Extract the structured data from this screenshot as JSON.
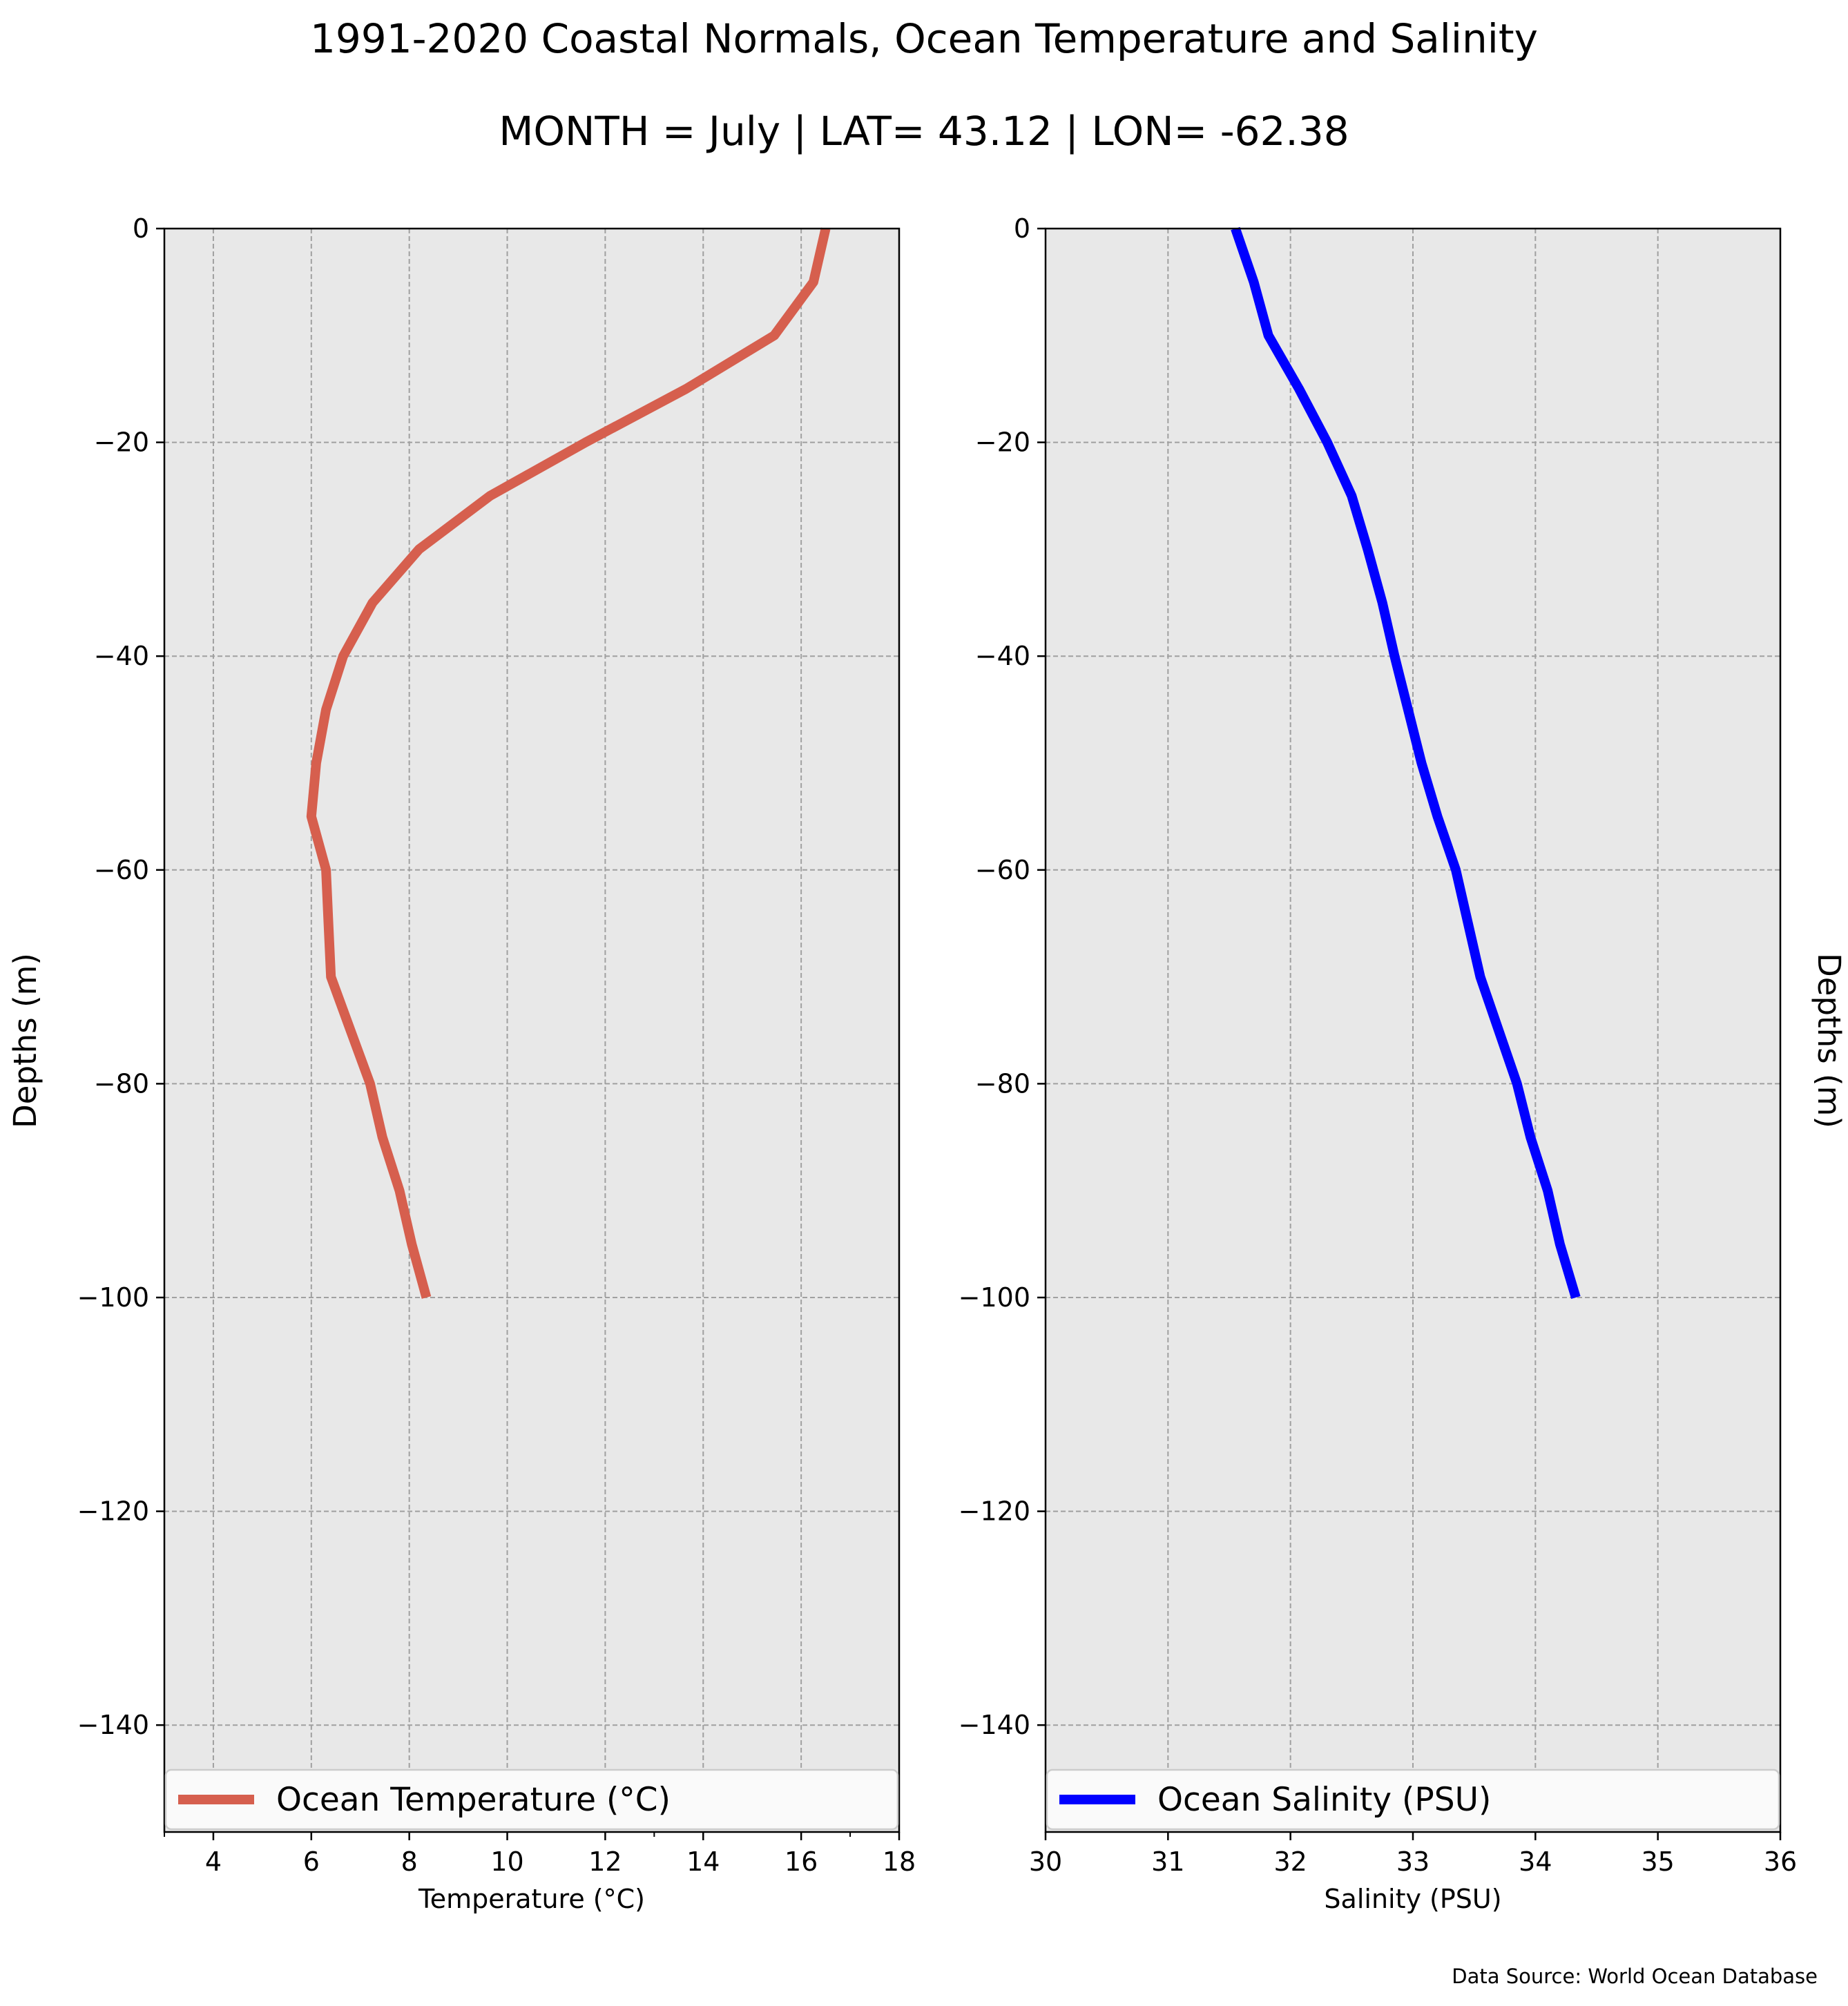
{
  "header": {
    "title": "1991-2020 Coastal Normals, Ocean Temperature and Salinity",
    "subtitle": "MONTH = July | LAT= 43.12 | LON= -62.38"
  },
  "source_note": "Data Source: World Ocean Database",
  "chart_data": [
    {
      "type": "line",
      "xlabel": "Temperature (°C)",
      "ylabel": "Depths (m)",
      "xlim": [
        3,
        18
      ],
      "ylim": [
        -150,
        0
      ],
      "xticks": [
        4,
        6,
        8,
        10,
        12,
        14,
        16,
        18
      ],
      "xtick_labels": [
        "4",
        "6",
        "8",
        "10",
        "12",
        "14",
        "16",
        "18"
      ],
      "yticks": [
        0,
        -20,
        -40,
        -60,
        -80,
        -100,
        -120,
        -140
      ],
      "ytick_labels": [
        "0",
        "−20",
        "−40",
        "−60",
        "−80",
        "−100",
        "−120",
        "−140"
      ],
      "grid": true,
      "legend_position": "bottom",
      "series": [
        {
          "name": "Ocean Temperature (°C)",
          "color": "#d65f4e",
          "x": [
            16.5,
            16.25,
            15.45,
            13.65,
            11.6,
            9.65,
            8.2,
            7.25,
            6.65,
            6.3,
            6.1,
            6.0,
            6.3,
            6.35,
            6.4,
            6.8,
            7.2,
            7.45,
            7.8,
            8.05,
            8.35
          ],
          "y": [
            0,
            -5,
            -10,
            -15,
            -20,
            -25,
            -30,
            -35,
            -40,
            -45,
            -50,
            -55,
            -60,
            -65,
            -70,
            -75,
            -80,
            -85,
            -90,
            -95,
            -100
          ]
        }
      ]
    },
    {
      "type": "line",
      "xlabel": "Salinity (PSU)",
      "ylabel": "Depths (m)",
      "xlim": [
        30,
        36
      ],
      "ylim": [
        -150,
        0
      ],
      "xticks": [
        30,
        31,
        32,
        33,
        34,
        35,
        36
      ],
      "xtick_labels": [
        "30",
        "31",
        "32",
        "33",
        "34",
        "35",
        "36"
      ],
      "yticks": [
        0,
        -20,
        -40,
        -60,
        -80,
        -100,
        -120,
        -140
      ],
      "ytick_labels": [
        "0",
        "−20",
        "−40",
        "−60",
        "−80",
        "−100",
        "−120",
        "−140"
      ],
      "grid": true,
      "legend_position": "bottom",
      "series": [
        {
          "name": "Ocean Salinity (PSU)",
          "color": "#0000ff",
          "x": [
            31.55,
            31.7,
            31.82,
            32.07,
            32.3,
            32.5,
            32.63,
            32.75,
            32.85,
            32.96,
            33.07,
            33.2,
            33.35,
            33.45,
            33.55,
            33.7,
            33.85,
            33.96,
            34.1,
            34.2,
            34.33
          ],
          "y": [
            0,
            -5,
            -10,
            -15,
            -20,
            -25,
            -30,
            -35,
            -40,
            -45,
            -50,
            -55,
            -60,
            -65,
            -70,
            -75,
            -80,
            -85,
            -90,
            -95,
            -100
          ]
        }
      ]
    }
  ]
}
